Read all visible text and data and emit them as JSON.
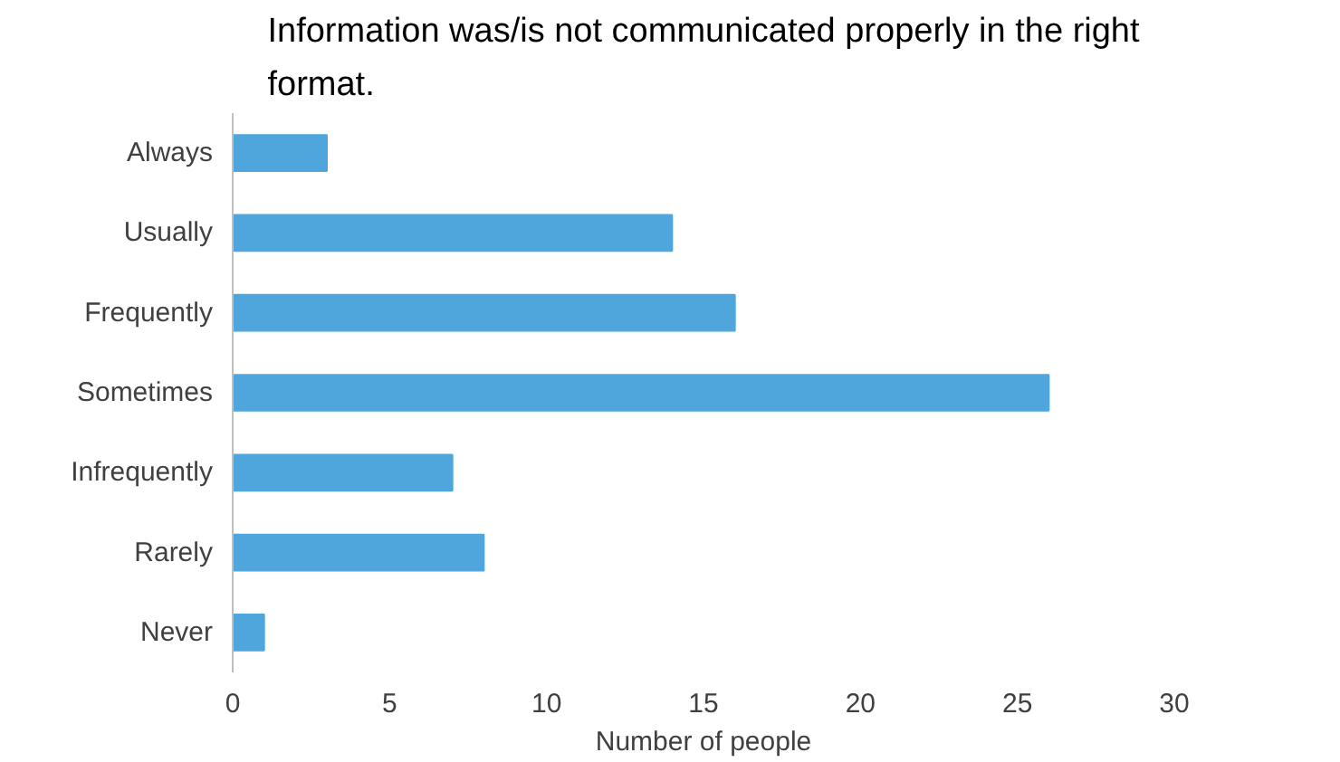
{
  "chart_data": {
    "type": "bar",
    "orientation": "horizontal",
    "title": "Information was/is not communicated properly in the right format.",
    "categories": [
      "Always",
      "Usually",
      "Frequently",
      "Sometimes",
      "Infrequently",
      "Rarely",
      "Never"
    ],
    "values": [
      3,
      14,
      16,
      26,
      7,
      8,
      1
    ],
    "color": "#4ea6dc",
    "xlabel": "Number of people",
    "xlim": [
      0,
      30
    ],
    "xticks": [
      0,
      5,
      10,
      15,
      20,
      25,
      30
    ],
    "grid": false
  }
}
